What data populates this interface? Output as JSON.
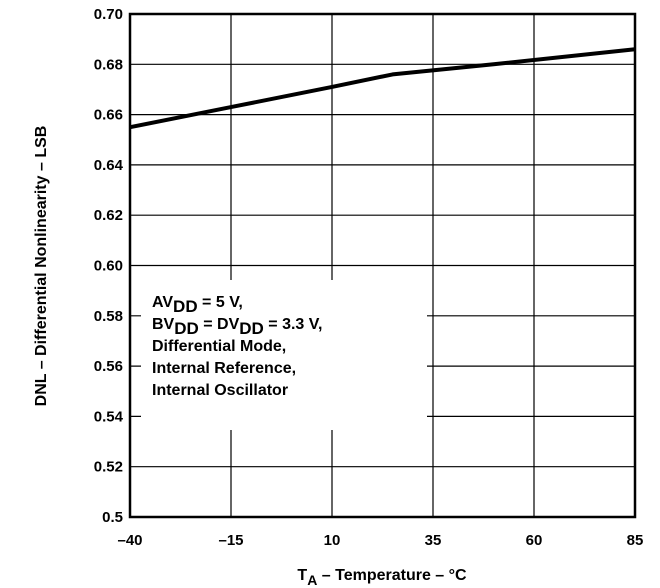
{
  "chart_data": {
    "type": "line",
    "xlabel": {
      "main": "T",
      "sub": "A",
      "rest": " – Temperature – °C"
    },
    "ylabel": "DNL – Differential Nonlinearity – LSB",
    "xlim": [
      -40,
      85
    ],
    "ylim": [
      0.5,
      0.7
    ],
    "x_ticks": [
      -40,
      -15,
      10,
      35,
      60,
      85
    ],
    "x_tick_labels": [
      "–40",
      "–15",
      "10",
      "35",
      "60",
      "85"
    ],
    "y_ticks": [
      0.5,
      0.52,
      0.54,
      0.56,
      0.58,
      0.6,
      0.62,
      0.64,
      0.66,
      0.68,
      0.7
    ],
    "y_tick_labels": [
      "0.5",
      "0.52",
      "0.54",
      "0.56",
      "0.58",
      "0.60",
      "0.62",
      "0.64",
      "0.66",
      "0.68",
      "0.70"
    ],
    "grid": true,
    "series": [
      {
        "x": [
          -40,
          -15,
          10,
          25,
          50,
          85
        ],
        "y": [
          0.655,
          0.663,
          0.671,
          0.676,
          0.68,
          0.686
        ]
      }
    ],
    "annotation": {
      "lines": [
        [
          {
            "t": "AV"
          },
          {
            "t": "DD",
            "sub": true
          },
          {
            "t": " = 5 V,"
          }
        ],
        [
          {
            "t": "BV"
          },
          {
            "t": "DD",
            "sub": true
          },
          {
            "t": " = DV"
          },
          {
            "t": "DD",
            "sub": true
          },
          {
            "t": " = 3.3 V,"
          }
        ],
        [
          {
            "t": "Differential Mode,"
          }
        ],
        [
          {
            "t": "Internal Reference,"
          }
        ],
        [
          {
            "t": "Internal Oscillator"
          }
        ]
      ]
    }
  }
}
